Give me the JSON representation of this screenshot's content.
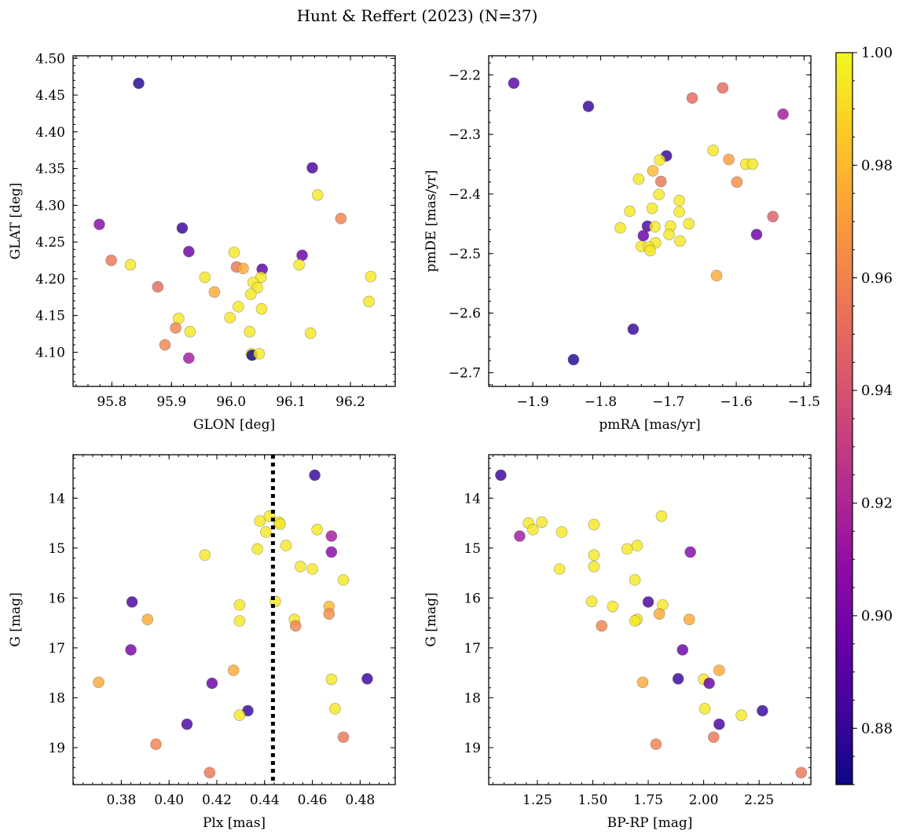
{
  "title": "Hunt & Reffert (2023) (N=37)",
  "colorbar": {
    "colormap": "plasma",
    "vmin": 0.87,
    "vmax": 1.0,
    "ticks": [
      0.88,
      0.9,
      0.92,
      0.94,
      0.96,
      0.98,
      1.0
    ],
    "tick_labels": [
      "0.88",
      "0.90",
      "0.92",
      "0.94",
      "0.96",
      "0.98",
      "1.00"
    ]
  },
  "chart_data": [
    {
      "type": "scatter",
      "name": "panel-glon-glat",
      "xlabel": "GLON [deg]",
      "ylabel": "GLAT [deg]",
      "xlim": [
        95.735,
        96.275
      ],
      "ylim": [
        4.0535,
        4.5035
      ],
      "xticks": [
        95.8,
        95.9,
        96.0,
        96.1,
        96.2
      ],
      "xtick_labels": [
        "95.8",
        "95.9",
        "96.0",
        "96.1",
        "96.2"
      ],
      "yticks": [
        4.1,
        4.15,
        4.2,
        4.25,
        4.3,
        4.35,
        4.4,
        4.45,
        4.5
      ],
      "ytick_labels": [
        "4.10",
        "4.15",
        "4.20",
        "4.25",
        "4.30",
        "4.35",
        "4.40",
        "4.45",
        "4.50"
      ],
      "points": [
        {
          "x": 95.845,
          "y": 4.466,
          "p": 0.875
        },
        {
          "x": 95.779,
          "y": 4.274,
          "p": 0.905
        },
        {
          "x": 95.799,
          "y": 4.225,
          "p": 0.955
        },
        {
          "x": 95.831,
          "y": 4.219,
          "p": 0.995
        },
        {
          "x": 95.918,
          "y": 4.269,
          "p": 0.88
        },
        {
          "x": 95.929,
          "y": 4.237,
          "p": 0.895
        },
        {
          "x": 95.877,
          "y": 4.189,
          "p": 0.95
        },
        {
          "x": 95.956,
          "y": 4.202,
          "p": 0.995
        },
        {
          "x": 95.972,
          "y": 4.182,
          "p": 0.975
        },
        {
          "x": 95.912,
          "y": 4.146,
          "p": 0.995
        },
        {
          "x": 95.907,
          "y": 4.133,
          "p": 0.96
        },
        {
          "x": 95.889,
          "y": 4.11,
          "p": 0.96
        },
        {
          "x": 95.931,
          "y": 4.128,
          "p": 0.995
        },
        {
          "x": 95.929,
          "y": 4.092,
          "p": 0.915
        },
        {
          "x": 96.005,
          "y": 4.236,
          "p": 0.995
        },
        {
          "x": 96.009,
          "y": 4.216,
          "p": 0.955
        },
        {
          "x": 96.02,
          "y": 4.214,
          "p": 0.975
        },
        {
          "x": 96.052,
          "y": 4.213,
          "p": 0.89
        },
        {
          "x": 96.05,
          "y": 4.202,
          "p": 0.995
        },
        {
          "x": 96.037,
          "y": 4.195,
          "p": 0.995
        },
        {
          "x": 96.044,
          "y": 4.188,
          "p": 0.995
        },
        {
          "x": 96.033,
          "y": 4.179,
          "p": 0.995
        },
        {
          "x": 96.012,
          "y": 4.162,
          "p": 0.995
        },
        {
          "x": 96.051,
          "y": 4.159,
          "p": 0.995
        },
        {
          "x": 95.998,
          "y": 4.147,
          "p": 0.995
        },
        {
          "x": 96.031,
          "y": 4.128,
          "p": 0.995
        },
        {
          "x": 96.034,
          "y": 4.098,
          "p": 0.995
        },
        {
          "x": 96.035,
          "y": 4.096,
          "p": 0.87
        },
        {
          "x": 96.047,
          "y": 4.098,
          "p": 0.995
        },
        {
          "x": 96.136,
          "y": 4.351,
          "p": 0.885
        },
        {
          "x": 96.145,
          "y": 4.314,
          "p": 0.995
        },
        {
          "x": 96.119,
          "y": 4.232,
          "p": 0.895
        },
        {
          "x": 96.114,
          "y": 4.219,
          "p": 0.995
        },
        {
          "x": 96.133,
          "y": 4.126,
          "p": 0.995
        },
        {
          "x": 96.184,
          "y": 4.282,
          "p": 0.96
        },
        {
          "x": 96.234,
          "y": 4.203,
          "p": 0.995
        },
        {
          "x": 96.231,
          "y": 4.169,
          "p": 0.995
        }
      ]
    },
    {
      "type": "scatter",
      "name": "panel-pmra-pmde",
      "xlabel": "pmRA [mas/yr]",
      "ylabel": "pmDE [mas/yr]",
      "xlim": [
        -1.965,
        -1.49
      ],
      "ylim": [
        -2.723,
        -2.168
      ],
      "xticks": [
        -1.9,
        -1.8,
        -1.7,
        -1.6,
        -1.5
      ],
      "xtick_labels": [
        "−1.9",
        "−1.8",
        "−1.7",
        "−1.6",
        "−1.5"
      ],
      "yticks": [
        -2.7,
        -2.6,
        -2.5,
        -2.4,
        -2.3,
        -2.2
      ],
      "ytick_labels": [
        "−2.7",
        "−2.6",
        "−2.5",
        "−2.4",
        "−2.3",
        "−2.2"
      ],
      "points": [
        {
          "x": -1.928,
          "y": -2.214,
          "p": 0.89
        },
        {
          "x": -1.818,
          "y": -2.253,
          "p": 0.88
        },
        {
          "x": -1.665,
          "y": -2.239,
          "p": 0.95
        },
        {
          "x": -1.62,
          "y": -2.222,
          "p": 0.95
        },
        {
          "x": -1.531,
          "y": -2.266,
          "p": 0.915
        },
        {
          "x": -1.703,
          "y": -2.336,
          "p": 0.88
        },
        {
          "x": -1.634,
          "y": -2.327,
          "p": 0.995
        },
        {
          "x": -1.713,
          "y": -2.343,
          "p": 0.995
        },
        {
          "x": -1.611,
          "y": -2.342,
          "p": 0.97
        },
        {
          "x": -1.586,
          "y": -2.35,
          "p": 0.995
        },
        {
          "x": -1.576,
          "y": -2.35,
          "p": 0.995
        },
        {
          "x": -1.723,
          "y": -2.361,
          "p": 0.98
        },
        {
          "x": -1.744,
          "y": -2.375,
          "p": 0.995
        },
        {
          "x": -1.711,
          "y": -2.379,
          "p": 0.955
        },
        {
          "x": -1.599,
          "y": -2.38,
          "p": 0.965
        },
        {
          "x": -1.714,
          "y": -2.401,
          "p": 0.995
        },
        {
          "x": -1.684,
          "y": -2.411,
          "p": 0.995
        },
        {
          "x": -1.724,
          "y": -2.424,
          "p": 0.995
        },
        {
          "x": -1.757,
          "y": -2.429,
          "p": 0.995
        },
        {
          "x": -1.684,
          "y": -2.43,
          "p": 0.995
        },
        {
          "x": -1.546,
          "y": -2.438,
          "p": 0.945
        },
        {
          "x": -1.67,
          "y": -2.45,
          "p": 0.995
        },
        {
          "x": -1.771,
          "y": -2.457,
          "p": 0.995
        },
        {
          "x": -1.731,
          "y": -2.454,
          "p": 0.885
        },
        {
          "x": -1.72,
          "y": -2.455,
          "p": 0.995
        },
        {
          "x": -1.697,
          "y": -2.454,
          "p": 0.995
        },
        {
          "x": -1.737,
          "y": -2.47,
          "p": 0.895
        },
        {
          "x": -1.699,
          "y": -2.468,
          "p": 0.995
        },
        {
          "x": -1.57,
          "y": -2.468,
          "p": 0.895
        },
        {
          "x": -1.683,
          "y": -2.479,
          "p": 0.995
        },
        {
          "x": -1.719,
          "y": -2.482,
          "p": 0.995
        },
        {
          "x": -1.74,
          "y": -2.488,
          "p": 0.995
        },
        {
          "x": -1.729,
          "y": -2.489,
          "p": 0.995
        },
        {
          "x": -1.727,
          "y": -2.495,
          "p": 0.995
        },
        {
          "x": -1.629,
          "y": -2.537,
          "p": 0.975
        },
        {
          "x": -1.752,
          "y": -2.627,
          "p": 0.88
        },
        {
          "x": -1.84,
          "y": -2.678,
          "p": 0.875
        }
      ]
    },
    {
      "type": "scatter",
      "name": "panel-plx-g",
      "xlabel": "Plx [mas]",
      "ylabel": "G [mag]",
      "xlim": [
        0.3598,
        0.4947
      ],
      "ylim": [
        19.74,
        13.13
      ],
      "invert_y": true,
      "vline": {
        "x": 0.4435,
        "style": "dotted"
      },
      "xticks": [
        0.38,
        0.4,
        0.42,
        0.44,
        0.46,
        0.48
      ],
      "xtick_labels": [
        "0.38",
        "0.40",
        "0.42",
        "0.44",
        "0.46",
        "0.48"
      ],
      "yticks": [
        14,
        15,
        16,
        17,
        18,
        19
      ],
      "ytick_labels": [
        "14",
        "15",
        "16",
        "17",
        "18",
        "19"
      ],
      "points": [
        {
          "x": 0.461,
          "y": 13.54,
          "p": 0.88
        },
        {
          "x": 0.442,
          "y": 14.36,
          "p": 0.995
        },
        {
          "x": 0.438,
          "y": 14.46,
          "p": 0.995
        },
        {
          "x": 0.446,
          "y": 14.48,
          "p": 0.995
        },
        {
          "x": 0.4465,
          "y": 14.52,
          "p": 0.995
        },
        {
          "x": 0.4405,
          "y": 14.68,
          "p": 0.995
        },
        {
          "x": 0.462,
          "y": 14.63,
          "p": 0.995
        },
        {
          "x": 0.468,
          "y": 14.76,
          "p": 0.915
        },
        {
          "x": 0.449,
          "y": 14.95,
          "p": 0.995
        },
        {
          "x": 0.437,
          "y": 15.02,
          "p": 0.995
        },
        {
          "x": 0.468,
          "y": 15.08,
          "p": 0.905
        },
        {
          "x": 0.415,
          "y": 15.14,
          "p": 0.995
        },
        {
          "x": 0.455,
          "y": 15.37,
          "p": 0.995
        },
        {
          "x": 0.46,
          "y": 15.42,
          "p": 0.995
        },
        {
          "x": 0.473,
          "y": 15.64,
          "p": 0.995
        },
        {
          "x": 0.4445,
          "y": 16.07,
          "p": 0.995
        },
        {
          "x": 0.3845,
          "y": 16.08,
          "p": 0.885
        },
        {
          "x": 0.4295,
          "y": 16.14,
          "p": 0.995
        },
        {
          "x": 0.467,
          "y": 16.17,
          "p": 0.98
        },
        {
          "x": 0.467,
          "y": 16.32,
          "p": 0.965
        },
        {
          "x": 0.391,
          "y": 16.43,
          "p": 0.975
        },
        {
          "x": 0.4525,
          "y": 16.43,
          "p": 0.995
        },
        {
          "x": 0.4295,
          "y": 16.46,
          "p": 0.995
        },
        {
          "x": 0.453,
          "y": 16.56,
          "p": 0.96
        },
        {
          "x": 0.384,
          "y": 17.04,
          "p": 0.9
        },
        {
          "x": 0.427,
          "y": 17.45,
          "p": 0.975
        },
        {
          "x": 0.468,
          "y": 17.63,
          "p": 0.995
        },
        {
          "x": 0.483,
          "y": 17.62,
          "p": 0.88
        },
        {
          "x": 0.3705,
          "y": 17.69,
          "p": 0.975
        },
        {
          "x": 0.418,
          "y": 17.71,
          "p": 0.895
        },
        {
          "x": 0.4695,
          "y": 18.22,
          "p": 0.995
        },
        {
          "x": 0.433,
          "y": 18.26,
          "p": 0.88
        },
        {
          "x": 0.4295,
          "y": 18.35,
          "p": 0.995
        },
        {
          "x": 0.4075,
          "y": 18.53,
          "p": 0.885
        },
        {
          "x": 0.473,
          "y": 18.79,
          "p": 0.955
        },
        {
          "x": 0.3945,
          "y": 18.93,
          "p": 0.96
        },
        {
          "x": 0.417,
          "y": 19.5,
          "p": 0.955
        }
      ]
    },
    {
      "type": "scatter",
      "name": "panel-bprp-g",
      "xlabel": "BP-RP [mag]",
      "ylabel": "G [mag]",
      "xlim": [
        1.0305,
        2.4835
      ],
      "ylim": [
        19.74,
        13.13
      ],
      "invert_y": true,
      "xticks": [
        1.25,
        1.5,
        1.75,
        2.0,
        2.25
      ],
      "xtick_labels": [
        "1.25",
        "1.50",
        "1.75",
        "2.00",
        "2.25"
      ],
      "yticks": [
        14,
        15,
        16,
        17,
        18,
        19
      ],
      "ytick_labels": [
        "14",
        "15",
        "16",
        "17",
        "18",
        "19"
      ],
      "points": [
        {
          "x": 1.085,
          "y": 13.54,
          "p": 0.88
        },
        {
          "x": 1.81,
          "y": 14.36,
          "p": 0.995
        },
        {
          "x": 1.21,
          "y": 14.5,
          "p": 0.995
        },
        {
          "x": 1.27,
          "y": 14.48,
          "p": 0.995
        },
        {
          "x": 1.505,
          "y": 14.53,
          "p": 0.995
        },
        {
          "x": 1.23,
          "y": 14.63,
          "p": 0.995
        },
        {
          "x": 1.36,
          "y": 14.68,
          "p": 0.995
        },
        {
          "x": 1.17,
          "y": 14.76,
          "p": 0.915
        },
        {
          "x": 1.7,
          "y": 14.95,
          "p": 0.995
        },
        {
          "x": 1.655,
          "y": 15.02,
          "p": 0.995
        },
        {
          "x": 1.94,
          "y": 15.08,
          "p": 0.905
        },
        {
          "x": 1.505,
          "y": 15.14,
          "p": 0.995
        },
        {
          "x": 1.505,
          "y": 15.37,
          "p": 0.995
        },
        {
          "x": 1.35,
          "y": 15.42,
          "p": 0.995
        },
        {
          "x": 1.69,
          "y": 15.64,
          "p": 0.995
        },
        {
          "x": 1.495,
          "y": 16.07,
          "p": 0.995
        },
        {
          "x": 1.75,
          "y": 16.08,
          "p": 0.885
        },
        {
          "x": 1.815,
          "y": 16.14,
          "p": 0.995
        },
        {
          "x": 1.59,
          "y": 16.17,
          "p": 0.995
        },
        {
          "x": 1.8,
          "y": 16.32,
          "p": 0.975
        },
        {
          "x": 1.935,
          "y": 16.43,
          "p": 0.975
        },
        {
          "x": 1.7,
          "y": 16.43,
          "p": 0.995
        },
        {
          "x": 1.69,
          "y": 16.46,
          "p": 0.995
        },
        {
          "x": 1.54,
          "y": 16.56,
          "p": 0.96
        },
        {
          "x": 1.905,
          "y": 17.04,
          "p": 0.895
        },
        {
          "x": 2.07,
          "y": 17.45,
          "p": 0.975
        },
        {
          "x": 2.0,
          "y": 17.63,
          "p": 0.995
        },
        {
          "x": 1.885,
          "y": 17.62,
          "p": 0.88
        },
        {
          "x": 1.725,
          "y": 17.69,
          "p": 0.975
        },
        {
          "x": 2.025,
          "y": 17.71,
          "p": 0.895
        },
        {
          "x": 2.005,
          "y": 18.22,
          "p": 0.995
        },
        {
          "x": 2.265,
          "y": 18.26,
          "p": 0.88
        },
        {
          "x": 2.17,
          "y": 18.35,
          "p": 0.995
        },
        {
          "x": 2.07,
          "y": 18.53,
          "p": 0.885
        },
        {
          "x": 2.045,
          "y": 18.79,
          "p": 0.955
        },
        {
          "x": 1.785,
          "y": 18.93,
          "p": 0.96
        },
        {
          "x": 2.44,
          "y": 19.5,
          "p": 0.955
        }
      ]
    }
  ]
}
